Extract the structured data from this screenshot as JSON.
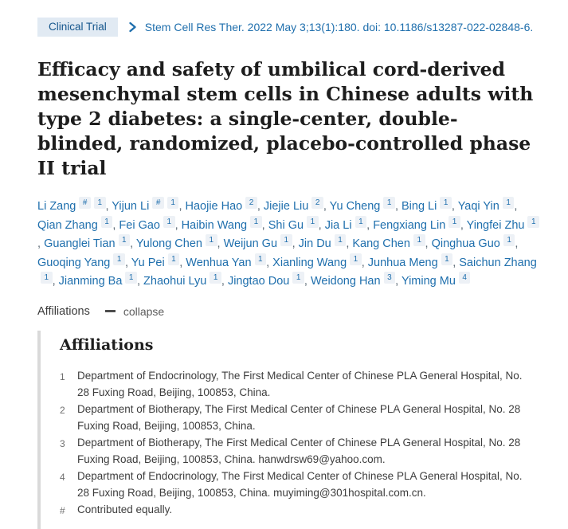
{
  "colors": {
    "link_blue": "#1f6fad",
    "badge_bg": "#e1eaf3",
    "badge_text": "#14558c",
    "chip_bg": "#edf1f6",
    "bar_gray": "#d9d9d9"
  },
  "header": {
    "badge_label": "Clinical Trial",
    "citation": "Stem Cell Res Ther. 2022 May 3;13(1):180. doi: 10.1186/s13287-022-02848-6."
  },
  "article": {
    "title": "Efficacy and safety of umbilical cord-derived mesenchymal stem cells in Chinese adults with type 2 diabetes: a single-center, double-blinded, randomized, placebo-controlled phase II trial"
  },
  "authors": [
    {
      "name": "Li Zang",
      "sups": [
        "#",
        "1"
      ]
    },
    {
      "name": "Yijun Li",
      "sups": [
        "#",
        "1"
      ]
    },
    {
      "name": "Haojie Hao",
      "sups": [
        "2"
      ]
    },
    {
      "name": "Jiejie Liu",
      "sups": [
        "2"
      ]
    },
    {
      "name": "Yu Cheng",
      "sups": [
        "1"
      ]
    },
    {
      "name": "Bing Li",
      "sups": [
        "1"
      ]
    },
    {
      "name": "Yaqi Yin",
      "sups": [
        "1"
      ]
    },
    {
      "name": "Qian Zhang",
      "sups": [
        "1"
      ]
    },
    {
      "name": "Fei Gao",
      "sups": [
        "1"
      ]
    },
    {
      "name": "Haibin Wang",
      "sups": [
        "1"
      ]
    },
    {
      "name": "Shi Gu",
      "sups": [
        "1"
      ]
    },
    {
      "name": "Jia Li",
      "sups": [
        "1"
      ]
    },
    {
      "name": "Fengxiang Lin",
      "sups": [
        "1"
      ]
    },
    {
      "name": "Yingfei Zhu",
      "sups": [
        "1"
      ]
    },
    {
      "name": "Guanglei Tian",
      "sups": [
        "1"
      ]
    },
    {
      "name": "Yulong Chen",
      "sups": [
        "1"
      ]
    },
    {
      "name": "Weijun Gu",
      "sups": [
        "1"
      ]
    },
    {
      "name": "Jin Du",
      "sups": [
        "1"
      ]
    },
    {
      "name": "Kang Chen",
      "sups": [
        "1"
      ]
    },
    {
      "name": "Qinghua Guo",
      "sups": [
        "1"
      ]
    },
    {
      "name": "Guoqing Yang",
      "sups": [
        "1"
      ]
    },
    {
      "name": "Yu Pei",
      "sups": [
        "1"
      ]
    },
    {
      "name": "Wenhua Yan",
      "sups": [
        "1"
      ]
    },
    {
      "name": "Xianling Wang",
      "sups": [
        "1"
      ]
    },
    {
      "name": "Junhua Meng",
      "sups": [
        "1"
      ]
    },
    {
      "name": "Saichun Zhang",
      "sups": [
        "1"
      ]
    },
    {
      "name": "Jianming Ba",
      "sups": [
        "1"
      ]
    },
    {
      "name": "Zhaohui Lyu",
      "sups": [
        "1"
      ]
    },
    {
      "name": "Jingtao Dou",
      "sups": [
        "1"
      ]
    },
    {
      "name": "Weidong Han",
      "sups": [
        "3"
      ]
    },
    {
      "name": "Yiming Mu",
      "sups": [
        "4"
      ]
    }
  ],
  "affiliations_toggle": {
    "label": "Affiliations",
    "collapse_label": "collapse",
    "icon": "minus-icon"
  },
  "affiliations": {
    "heading": "Affiliations",
    "items": [
      {
        "marker": "1",
        "text": "Department of Endocrinology, The First Medical Center of Chinese PLA General Hospital, No. 28 Fuxing Road, Beijing, 100853, China."
      },
      {
        "marker": "2",
        "text": "Department of Biotherapy, The First Medical Center of Chinese PLA General Hospital, No. 28 Fuxing Road, Beijing, 100853, China."
      },
      {
        "marker": "3",
        "text": "Department of Biotherapy, The First Medical Center of Chinese PLA General Hospital, No. 28 Fuxing Road, Beijing, 100853, China. hanwdrsw69@yahoo.com."
      },
      {
        "marker": "4",
        "text": "Department of Endocrinology, The First Medical Center of Chinese PLA General Hospital, No. 28 Fuxing Road, Beijing, 100853, China. muyiming@301hospital.com.cn."
      },
      {
        "marker": "#",
        "text": "Contributed equally."
      }
    ]
  }
}
